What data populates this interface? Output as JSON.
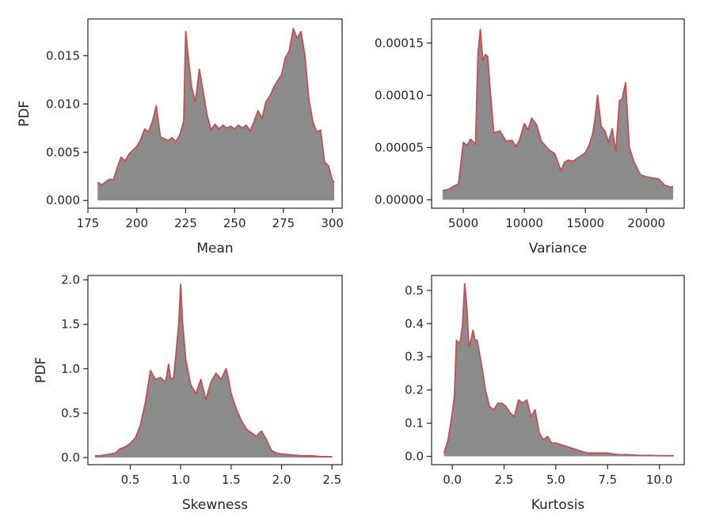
{
  "colors": {
    "line": "#c44e52",
    "fill": "#8c8c8c",
    "axis": "#262626",
    "background": "#ffffff"
  },
  "chart_data": [
    {
      "type": "area",
      "xlabel": "Mean",
      "ylabel": "PDF",
      "xlim": [
        175,
        305
      ],
      "ylim": [
        -0.0008,
        0.0188
      ],
      "xticks": [
        175,
        200,
        225,
        250,
        275,
        300
      ],
      "xtick_labels": [
        "175",
        "200",
        "225",
        "250",
        "275",
        "300"
      ],
      "yticks": [
        0,
        0.005,
        0.01,
        0.015
      ],
      "ytick_labels": [
        "0.000",
        "0.005",
        "0.010",
        "0.015"
      ],
      "x": [
        180,
        182,
        184,
        186,
        188,
        190,
        192,
        194,
        196,
        198,
        200,
        202,
        204,
        206,
        208,
        210,
        212,
        214,
        216,
        218,
        220,
        222,
        224,
        225,
        226,
        228,
        230,
        232,
        234,
        236,
        238,
        240,
        242,
        244,
        246,
        248,
        250,
        252,
        254,
        256,
        258,
        260,
        262,
        264,
        266,
        268,
        270,
        272,
        274,
        276,
        278,
        280,
        282,
        284,
        286,
        288,
        290,
        292,
        294,
        296,
        298,
        300,
        301
      ],
      "y": [
        0.0019,
        0.0016,
        0.0019,
        0.0022,
        0.0021,
        0.0034,
        0.0045,
        0.0041,
        0.0048,
        0.0052,
        0.0056,
        0.0063,
        0.0074,
        0.0071,
        0.0082,
        0.0098,
        0.0066,
        0.0064,
        0.0062,
        0.0065,
        0.0061,
        0.0068,
        0.0082,
        0.0175,
        0.0155,
        0.0118,
        0.0102,
        0.0136,
        0.0112,
        0.0088,
        0.0073,
        0.0079,
        0.0074,
        0.0078,
        0.0075,
        0.0077,
        0.0074,
        0.0078,
        0.0075,
        0.0078,
        0.0072,
        0.0082,
        0.0093,
        0.0085,
        0.0102,
        0.0108,
        0.0117,
        0.0124,
        0.013,
        0.0148,
        0.0155,
        0.0178,
        0.0168,
        0.0175,
        0.015,
        0.0105,
        0.0082,
        0.0071,
        0.0073,
        0.004,
        0.0036,
        0.0021,
        0.0019
      ]
    },
    {
      "type": "area",
      "xlabel": "Variance",
      "ylabel": "",
      "xlim": [
        2400,
        23100
      ],
      "ylim": [
        -8e-06,
        0.000173
      ],
      "xticks": [
        5000,
        10000,
        15000,
        20000
      ],
      "xtick_labels": [
        "5000",
        "10000",
        "15000",
        "20000"
      ],
      "yticks": [
        0,
        5e-05,
        0.0001,
        0.00015
      ],
      "ytick_labels": [
        "0.00000",
        "0.00005",
        "0.00010",
        "0.00015"
      ],
      "x": [
        3300,
        3800,
        4200,
        4600,
        5000,
        5300,
        5600,
        6000,
        6200,
        6400,
        6600,
        6800,
        7000,
        7200,
        7500,
        8000,
        8500,
        9000,
        9300,
        9600,
        10000,
        10300,
        10600,
        11000,
        11400,
        12000,
        12500,
        13000,
        13300,
        13600,
        14000,
        14500,
        15000,
        15300,
        15600,
        15800,
        16000,
        16300,
        16600,
        16900,
        17200,
        17500,
        17800,
        18000,
        18300,
        18600,
        19000,
        19500,
        20000,
        20500,
        21000,
        21500,
        22000,
        22200
      ],
      "y": [
        9e-06,
        1e-05,
        1.3e-05,
        1.5e-05,
        5.5e-05,
        5.2e-05,
        5.8e-05,
        5.3e-05,
        0.00014,
        0.000163,
        0.000133,
        0.000139,
        0.000137,
        0.000105,
        6.4e-05,
        6.6e-05,
        5.6e-05,
        5.7e-05,
        5.1e-05,
        5.7e-05,
        7.3e-05,
        6.7e-05,
        7.8e-05,
        7.2e-05,
        5.6e-05,
        4.8e-05,
        4.4e-05,
        2.8e-05,
        3.6e-05,
        3.8e-05,
        3.7e-05,
        4.1e-05,
        4.5e-05,
        5.2e-05,
        6.3e-05,
        7.8e-05,
        0.0001,
        7e-05,
        6.6e-05,
        5.5e-05,
        6.8e-05,
        4.6e-05,
        9.5e-05,
        9.6e-05,
        0.000112,
        5e-05,
        3.6e-05,
        2.4e-05,
        2.2e-05,
        2.1e-05,
        2e-05,
        1.4e-05,
        1.2e-05,
        1.3e-05
      ]
    },
    {
      "type": "area",
      "xlabel": "Skewness",
      "ylabel": "PDF",
      "xlim": [
        0.08,
        2.6
      ],
      "ylim": [
        -0.08,
        2.05
      ],
      "xticks": [
        0.5,
        1.0,
        1.5,
        2.0,
        2.5
      ],
      "xtick_labels": [
        "0.5",
        "1.0",
        "1.5",
        "2.0",
        "2.5"
      ],
      "yticks": [
        0,
        0.5,
        1.0,
        1.5,
        2.0
      ],
      "ytick_labels": [
        "0.0",
        "0.5",
        "1.0",
        "1.5",
        "2.0"
      ],
      "x": [
        0.15,
        0.2,
        0.25,
        0.3,
        0.35,
        0.4,
        0.45,
        0.5,
        0.55,
        0.6,
        0.65,
        0.7,
        0.75,
        0.8,
        0.85,
        0.88,
        0.9,
        0.93,
        0.96,
        0.98,
        1.0,
        1.02,
        1.05,
        1.1,
        1.15,
        1.2,
        1.25,
        1.3,
        1.35,
        1.4,
        1.45,
        1.47,
        1.5,
        1.55,
        1.6,
        1.65,
        1.7,
        1.75,
        1.8,
        1.85,
        1.9,
        1.95,
        2.0,
        2.1,
        2.2,
        2.3,
        2.4,
        2.5
      ],
      "y": [
        0.02,
        0.02,
        0.03,
        0.04,
        0.05,
        0.1,
        0.12,
        0.16,
        0.22,
        0.36,
        0.62,
        0.98,
        0.88,
        0.9,
        0.85,
        1.05,
        0.88,
        0.9,
        1.25,
        1.5,
        1.95,
        1.5,
        1.1,
        0.82,
        0.72,
        0.88,
        0.65,
        0.85,
        0.95,
        0.88,
        1.0,
        0.9,
        0.72,
        0.55,
        0.42,
        0.32,
        0.28,
        0.24,
        0.3,
        0.2,
        0.08,
        0.05,
        0.04,
        0.03,
        0.02,
        0.02,
        0.01,
        0.01
      ]
    },
    {
      "type": "area",
      "xlabel": "Kurtosis",
      "ylabel": "",
      "xlim": [
        -1.0,
        11.2
      ],
      "ylim": [
        -0.025,
        0.545
      ],
      "xticks": [
        0,
        2.5,
        5,
        7.5,
        10
      ],
      "xtick_labels": [
        "0.0",
        "2.5",
        "5.0",
        "7.5",
        "10.0"
      ],
      "yticks": [
        0,
        0.1,
        0.2,
        0.3,
        0.4,
        0.5
      ],
      "ytick_labels": [
        "0.0",
        "0.1",
        "0.2",
        "0.3",
        "0.4",
        "0.5"
      ],
      "x": [
        -0.4,
        -0.2,
        0.0,
        0.1,
        0.2,
        0.3,
        0.4,
        0.5,
        0.6,
        0.7,
        0.8,
        0.9,
        1.0,
        1.1,
        1.2,
        1.4,
        1.6,
        1.8,
        2.0,
        2.2,
        2.4,
        2.6,
        2.8,
        3.0,
        3.2,
        3.4,
        3.6,
        3.8,
        4.0,
        4.2,
        4.4,
        4.6,
        4.8,
        5.0,
        5.5,
        6.0,
        6.5,
        7.0,
        7.5,
        8.0,
        8.5,
        9.0,
        9.5,
        10.0,
        10.7
      ],
      "y": [
        0.01,
        0.05,
        0.13,
        0.18,
        0.35,
        0.34,
        0.35,
        0.4,
        0.52,
        0.45,
        0.33,
        0.35,
        0.38,
        0.35,
        0.35,
        0.28,
        0.2,
        0.15,
        0.14,
        0.16,
        0.16,
        0.15,
        0.13,
        0.12,
        0.17,
        0.16,
        0.17,
        0.12,
        0.14,
        0.07,
        0.05,
        0.06,
        0.04,
        0.04,
        0.03,
        0.02,
        0.01,
        0.01,
        0.01,
        0.005,
        0.005,
        0.003,
        0.003,
        0.002,
        0.002
      ]
    }
  ]
}
